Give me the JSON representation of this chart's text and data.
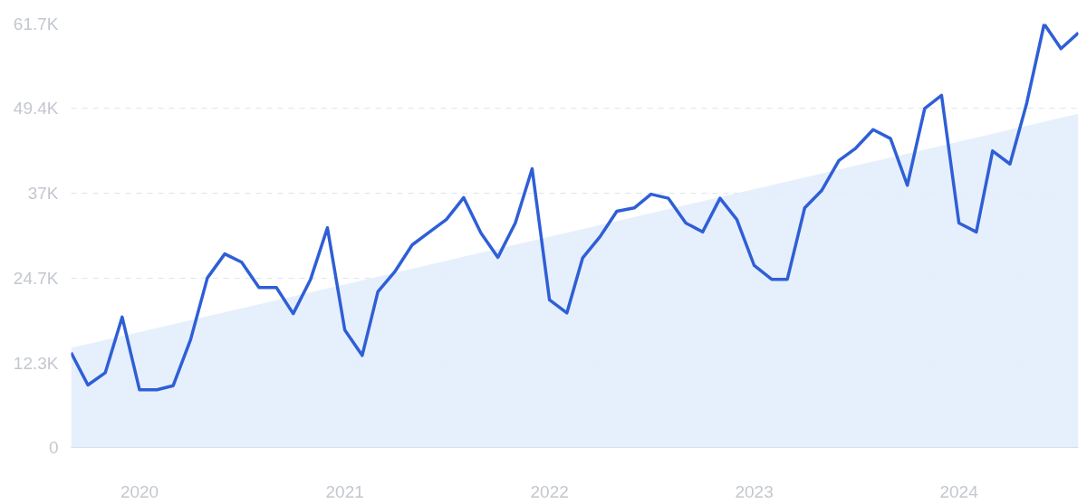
{
  "chart_data": {
    "type": "line",
    "x": [
      "2019-09",
      "2019-10",
      "2019-11",
      "2019-12",
      "2020-01",
      "2020-02",
      "2020-03",
      "2020-04",
      "2020-05",
      "2020-06",
      "2020-07",
      "2020-08",
      "2020-09",
      "2020-10",
      "2020-11",
      "2020-12",
      "2021-01",
      "2021-02",
      "2021-03",
      "2021-04",
      "2021-05",
      "2021-06",
      "2021-07",
      "2021-08",
      "2021-09",
      "2021-10",
      "2021-11",
      "2021-12",
      "2022-01",
      "2022-02",
      "2022-03",
      "2022-04",
      "2022-05",
      "2022-06",
      "2022-07",
      "2022-08",
      "2022-09",
      "2022-10",
      "2022-11",
      "2022-12",
      "2023-01",
      "2023-02",
      "2023-03",
      "2023-04",
      "2023-05",
      "2023-06",
      "2023-07",
      "2023-08",
      "2023-09",
      "2023-10",
      "2023-11",
      "2023-12",
      "2024-01",
      "2024-02",
      "2024-03",
      "2024-04",
      "2024-05",
      "2024-06",
      "2024-07",
      "2024-08"
    ],
    "series": [
      {
        "type": "area",
        "color": "#e3edfc",
        "x": [
          "2019-09",
          "2024-08"
        ],
        "values": [
          14500,
          48600
        ]
      },
      {
        "color": "#2f5fd6",
        "values": [
          13800,
          9100,
          10900,
          19000,
          8400,
          8400,
          9000,
          15700,
          24700,
          28200,
          27000,
          23300,
          23300,
          19500,
          24500,
          32000,
          17100,
          13400,
          22700,
          25700,
          29500,
          31400,
          33200,
          36400,
          31200,
          27700,
          32700,
          40600,
          21500,
          19600,
          27600,
          30700,
          34400,
          34900,
          36900,
          36300,
          32700,
          31400,
          36300,
          33200,
          26500,
          24500,
          24500,
          34900,
          37400,
          41800,
          43600,
          46300,
          45000,
          38200,
          49400,
          51300,
          32700,
          31400,
          43200,
          41300,
          50200,
          61700,
          58100,
          60400
        ]
      }
    ],
    "xlim": [
      "2019-09",
      "2024-08"
    ],
    "xticks": [
      "2020",
      "2021",
      "2022",
      "2023",
      "2024"
    ],
    "ylim": [
      0,
      61700
    ],
    "yticks": [
      0,
      {
        "value": 12300,
        "label": "12.3K"
      },
      {
        "value": 24700,
        "label": "24.7K"
      },
      {
        "value": 37000,
        "label": "37K"
      },
      {
        "value": 49400,
        "label": "49.4K"
      },
      {
        "value": 61700,
        "label": "61.7K"
      }
    ],
    "grid": "y",
    "marker": "none",
    "line_style": "solid"
  }
}
